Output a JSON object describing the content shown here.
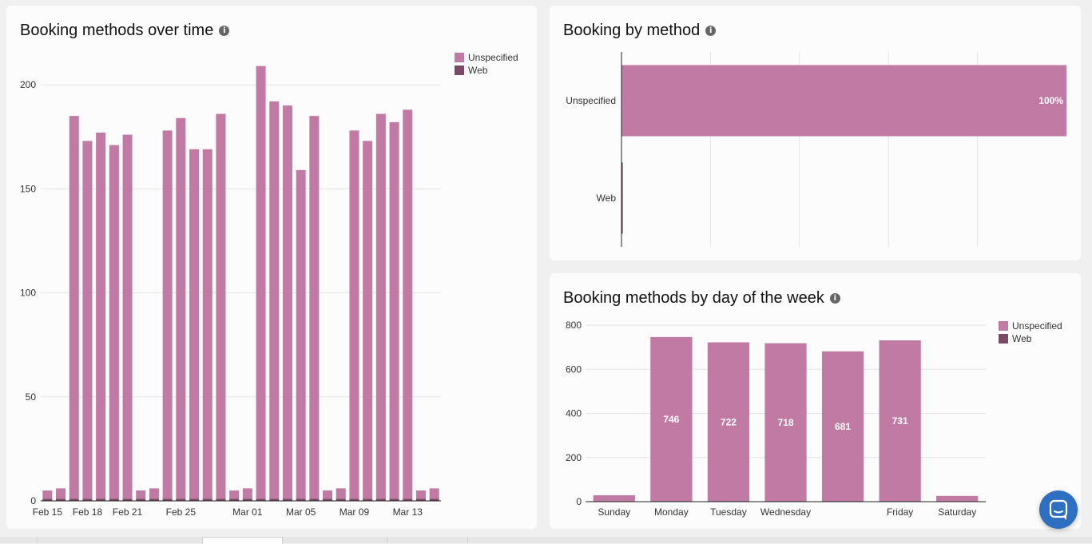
{
  "cards": {
    "over_time": {
      "title": "Booking methods over time"
    },
    "by_method": {
      "title": "Booking by method"
    },
    "by_day": {
      "title": "Booking methods by day of the week"
    }
  },
  "colors": {
    "unspecified": "#c17aa3",
    "web": "#7b4a65",
    "grid": "#e4e4e4",
    "axis": "#222222"
  },
  "icons": {
    "info": "info-icon",
    "chat": "chat-bubble-icon"
  },
  "chart_data": [
    {
      "type": "bar",
      "stacked": true,
      "title": "Booking methods over time",
      "x": [
        "Feb 15",
        "Feb 16",
        "Feb 17",
        "Feb 18",
        "Feb 19",
        "Feb 20",
        "Feb 21",
        "Feb 22",
        "Feb 23",
        "Feb 24",
        "Feb 25",
        "Feb 26",
        "Feb 27",
        "Feb 28",
        "Feb 29",
        "Mar 01",
        "Mar 02",
        "Mar 03",
        "Mar 04",
        "Mar 05",
        "Mar 06",
        "Mar 07",
        "Mar 08",
        "Mar 09",
        "Mar 10",
        "Mar 11",
        "Mar 12",
        "Mar 13",
        "Mar 14",
        "Mar 15"
      ],
      "x_tick_labels": [
        "Feb 15",
        "Feb 18",
        "Feb 21",
        "Feb 25",
        "Mar 01",
        "Mar 05",
        "Mar 09",
        "Mar 13"
      ],
      "series": [
        {
          "name": "Unspecified",
          "values": [
            4,
            5,
            184,
            172,
            176,
            170,
            175,
            4,
            5,
            177,
            183,
            168,
            168,
            185,
            4,
            5,
            208,
            191,
            189,
            158,
            184,
            4,
            5,
            177,
            172,
            185,
            181,
            187,
            4,
            5
          ]
        },
        {
          "name": "Web",
          "values": [
            1,
            1,
            1,
            1,
            1,
            1,
            1,
            1,
            1,
            1,
            1,
            1,
            1,
            1,
            1,
            1,
            1,
            1,
            1,
            1,
            1,
            1,
            1,
            1,
            1,
            1,
            1,
            1,
            1,
            1
          ]
        }
      ],
      "y_ticks": [
        0,
        50,
        100,
        150,
        200
      ],
      "ylim": [
        0,
        215
      ],
      "legend": "top-right"
    },
    {
      "type": "bar",
      "orientation": "horizontal",
      "title": "Booking by method",
      "categories": [
        "Unspecified",
        "Web"
      ],
      "values": [
        100,
        0.3
      ],
      "data_labels": [
        "100%",
        ""
      ],
      "xlim": [
        0,
        100
      ],
      "grid": true
    },
    {
      "type": "bar",
      "stacked": true,
      "title": "Booking methods by day of the week",
      "categories": [
        "Sunday",
        "Monday",
        "Tuesday",
        "Wednesday",
        "",
        "Friday",
        "Saturday"
      ],
      "series": [
        {
          "name": "Unspecified",
          "values": [
            28,
            743,
            719,
            715,
            678,
            728,
            25
          ]
        },
        {
          "name": "Web",
          "values": [
            1,
            3,
            3,
            3,
            3,
            3,
            1
          ]
        }
      ],
      "data_labels": [
        "",
        "746",
        "722",
        "718",
        "681",
        "731",
        ""
      ],
      "y_ticks": [
        0,
        200,
        400,
        600,
        800
      ],
      "ylim": [
        0,
        800
      ],
      "legend": "top-right"
    }
  ]
}
